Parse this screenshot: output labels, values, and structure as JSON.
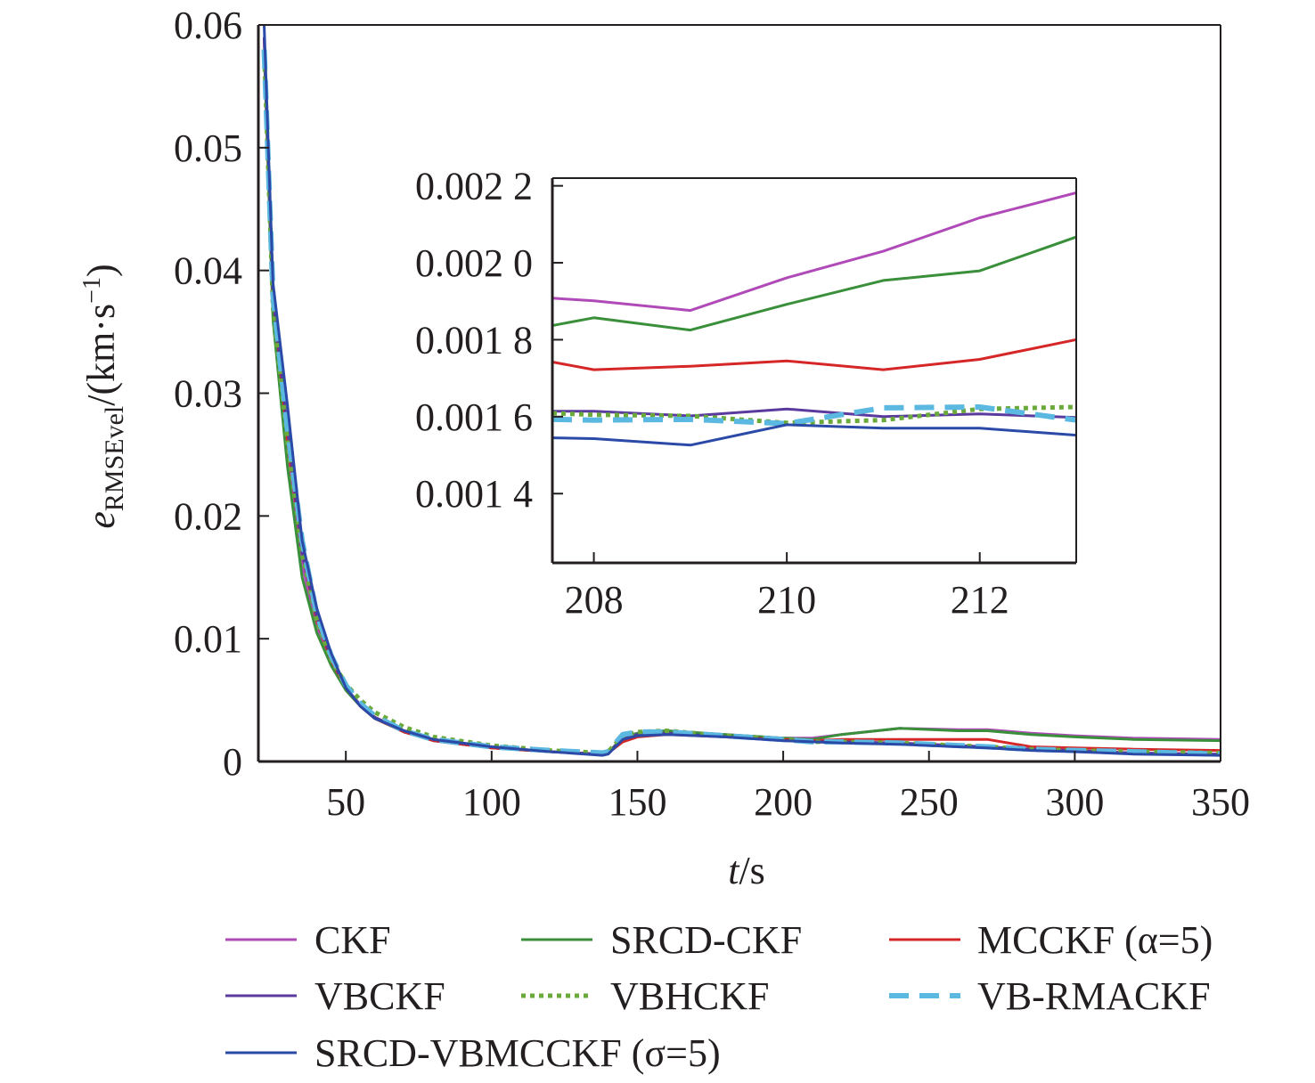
{
  "chart_data": [
    {
      "type": "line",
      "panel": "main",
      "xlabel": {
        "symbol": "t",
        "unit": "/s"
      },
      "ylabel": {
        "symbol": "e",
        "subscript": "RMSEvel",
        "unit": "/(km·s",
        "unit_exp": "−1",
        "close": ")"
      },
      "xlim": [
        20,
        350
      ],
      "ylim": [
        0,
        0.06
      ],
      "xticks": [
        50,
        100,
        150,
        200,
        250,
        300,
        350
      ],
      "xtick_labels": [
        "50",
        "100",
        "150",
        "200",
        "250",
        "300",
        "350"
      ],
      "yticks": [
        0,
        0.01,
        0.02,
        0.03,
        0.04,
        0.05,
        0.06
      ],
      "ytick_labels": [
        "0",
        "0.01",
        "0.02",
        "0.03",
        "0.04",
        "0.05",
        "0.06"
      ],
      "grid": false,
      "legend_position": "bottom",
      "x": [
        22,
        25,
        30,
        35,
        40,
        45,
        50,
        55,
        60,
        70,
        80,
        100,
        120,
        138,
        140,
        145,
        150,
        160,
        180,
        200,
        210,
        220,
        240,
        260,
        270,
        285,
        300,
        320,
        350
      ],
      "series": [
        {
          "name": "CKF",
          "color": "#b04ab8",
          "style": "solid",
          "values": [
            0.059,
            0.037,
            0.025,
            0.016,
            0.011,
            0.008,
            0.006,
            0.0045,
            0.0035,
            0.0024,
            0.0017,
            0.0011,
            0.0008,
            0.0006,
            0.0007,
            0.002,
            0.0023,
            0.0025,
            0.0022,
            0.0019,
            0.0019,
            0.0022,
            0.0027,
            0.0026,
            0.0026,
            0.0023,
            0.0021,
            0.0019,
            0.0018
          ]
        },
        {
          "name": "SRCD-CKF",
          "color": "#3a8f3a",
          "style": "solid",
          "values": [
            0.058,
            0.036,
            0.024,
            0.015,
            0.0105,
            0.0078,
            0.0058,
            0.0045,
            0.0035,
            0.0024,
            0.0017,
            0.0011,
            0.0008,
            0.0006,
            0.0007,
            0.002,
            0.0023,
            0.0025,
            0.0022,
            0.0019,
            0.0018,
            0.0022,
            0.0027,
            0.0025,
            0.0025,
            0.0022,
            0.002,
            0.0018,
            0.0017
          ]
        },
        {
          "name": "MCCKF (α=5)",
          "color": "#d62728",
          "style": "solid",
          "values": [
            0.059,
            0.038,
            0.026,
            0.017,
            0.0115,
            0.0082,
            0.006,
            0.0045,
            0.0035,
            0.0024,
            0.0017,
            0.0011,
            0.0008,
            0.0006,
            0.0007,
            0.0016,
            0.002,
            0.0022,
            0.002,
            0.0018,
            0.0017,
            0.0018,
            0.0018,
            0.0018,
            0.0018,
            0.0012,
            0.0011,
            0.001,
            0.0009
          ]
        },
        {
          "name": "VBCKF",
          "color": "#5b3a9e",
          "style": "solid",
          "values": [
            0.059,
            0.038,
            0.027,
            0.017,
            0.0118,
            0.0084,
            0.006,
            0.0046,
            0.0036,
            0.0025,
            0.0018,
            0.0012,
            0.0008,
            0.0006,
            0.0007,
            0.0019,
            0.0022,
            0.0023,
            0.002,
            0.0017,
            0.0016,
            0.0016,
            0.0015,
            0.0013,
            0.0012,
            0.001,
            0.0009,
            0.0007,
            0.0006
          ]
        },
        {
          "name": "VBHCKF",
          "color": "#6aaa3a",
          "style": "dotted",
          "values": [
            0.058,
            0.037,
            0.026,
            0.017,
            0.0115,
            0.0083,
            0.0063,
            0.005,
            0.004,
            0.0028,
            0.002,
            0.0013,
            0.0009,
            0.0007,
            0.0008,
            0.0021,
            0.0024,
            0.0025,
            0.0021,
            0.0018,
            0.0016,
            0.0016,
            0.0015,
            0.0013,
            0.0012,
            0.001,
            0.0009,
            0.0008,
            0.0007
          ]
        },
        {
          "name": "VB-RMACKF",
          "color": "#5bb8e0",
          "style": "dashed",
          "values": [
            0.058,
            0.038,
            0.027,
            0.018,
            0.012,
            0.0086,
            0.0062,
            0.0047,
            0.0037,
            0.0025,
            0.0018,
            0.0012,
            0.0009,
            0.0007,
            0.0008,
            0.0022,
            0.0024,
            0.0024,
            0.0021,
            0.0018,
            0.0016,
            0.0016,
            0.0015,
            0.0013,
            0.0012,
            0.001,
            0.0009,
            0.0008,
            0.0006
          ]
        },
        {
          "name": "SRCD-VBMCCKF (σ=5)",
          "color": "#2b4aa8",
          "style": "solid",
          "values": [
            0.06,
            0.039,
            0.029,
            0.018,
            0.0125,
            0.0088,
            0.006,
            0.0045,
            0.0035,
            0.0025,
            0.0018,
            0.0012,
            0.0008,
            0.0005,
            0.0006,
            0.0018,
            0.0021,
            0.0022,
            0.002,
            0.0017,
            0.0016,
            0.0015,
            0.0014,
            0.0012,
            0.0011,
            0.0009,
            0.0008,
            0.0006,
            0.0005
          ]
        }
      ]
    },
    {
      "type": "line",
      "panel": "inset",
      "xlim": [
        207.57,
        213
      ],
      "ylim": [
        0.00122,
        0.00222
      ],
      "xticks": [
        208,
        210,
        212
      ],
      "xtick_labels": [
        "208",
        "210",
        "212"
      ],
      "yticks": [
        0.0014,
        0.0016,
        0.0018,
        0.002,
        0.0022
      ],
      "ytick_labels": [
        "0.001 4",
        "0.001 6",
        "0.001 8",
        "0.002 0",
        "0.002 2"
      ],
      "grid": false,
      "x": [
        207.57,
        208,
        209,
        210,
        211,
        212,
        213
      ],
      "series": [
        {
          "name": "CKF",
          "color": "#b04ab8",
          "style": "solid",
          "values": [
            0.001908,
            0.001901,
            0.001876,
            0.001961,
            0.00203,
            0.002117,
            0.002182
          ]
        },
        {
          "name": "SRCD-CKF",
          "color": "#3a8f3a",
          "style": "solid",
          "values": [
            0.001837,
            0.001857,
            0.001825,
            0.001892,
            0.001954,
            0.001979,
            0.002067
          ]
        },
        {
          "name": "MCCKF (α=5)",
          "color": "#d62728",
          "style": "solid",
          "values": [
            0.001742,
            0.001722,
            0.001731,
            0.001745,
            0.001722,
            0.001749,
            0.0018
          ]
        },
        {
          "name": "VBCKF",
          "color": "#5b3a9e",
          "style": "solid",
          "values": [
            0.001614,
            0.001614,
            0.001602,
            0.00162,
            0.0016,
            0.001607,
            0.001598
          ]
        },
        {
          "name": "VBHCKF",
          "color": "#6aaa3a",
          "style": "dotted",
          "values": [
            0.001609,
            0.001605,
            0.001602,
            0.001584,
            0.001591,
            0.00162,
            0.001625
          ]
        },
        {
          "name": "VB-RMACKF",
          "color": "#5bb8e0",
          "style": "dashed",
          "values": [
            0.001593,
            0.001591,
            0.001593,
            0.001582,
            0.001623,
            0.001625,
            0.001591
          ]
        },
        {
          "name": "SRCD-VBMCCKF (σ=5)",
          "color": "#2b4aa8",
          "style": "solid",
          "values": [
            0.001545,
            0.001543,
            0.001526,
            0.001579,
            0.00157,
            0.00157,
            0.001552
          ]
        }
      ]
    }
  ]
}
